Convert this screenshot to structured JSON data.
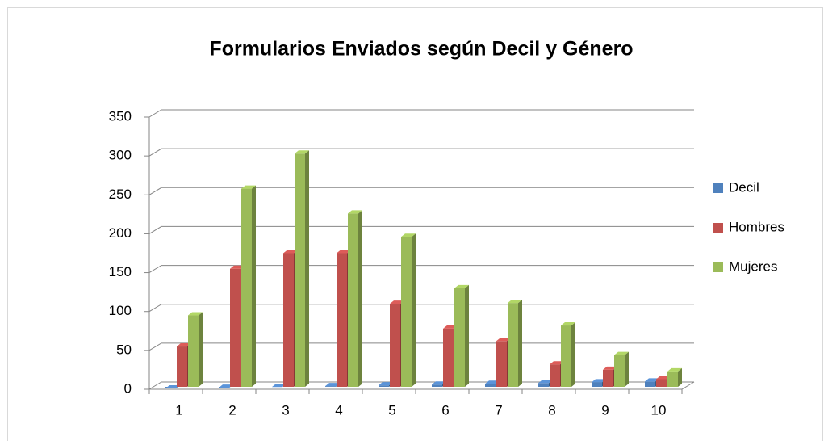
{
  "chart_data": {
    "type": "bar3d",
    "title": "Formularios Enviados según Decil y Género",
    "categories": [
      "1",
      "2",
      "3",
      "4",
      "5",
      "6",
      "7",
      "8",
      "9",
      "10"
    ],
    "series": [
      {
        "name": "Decil",
        "color": "#4f81bd",
        "values": [
          1,
          2,
          3,
          4,
          5,
          6,
          7,
          8,
          9,
          10
        ]
      },
      {
        "name": "Hombres",
        "color": "#c0504d",
        "values": [
          55,
          155,
          175,
          175,
          110,
          78,
          62,
          32,
          25,
          13
        ]
      },
      {
        "name": "Mujeres",
        "color": "#9bbb59",
        "values": [
          95,
          258,
          303,
          226,
          196,
          130,
          111,
          82,
          44,
          23
        ]
      }
    ],
    "ylim": [
      0,
      350
    ],
    "yticks": [
      0,
      50,
      100,
      150,
      200,
      250,
      300,
      350
    ],
    "grid": true,
    "legend": "right"
  }
}
